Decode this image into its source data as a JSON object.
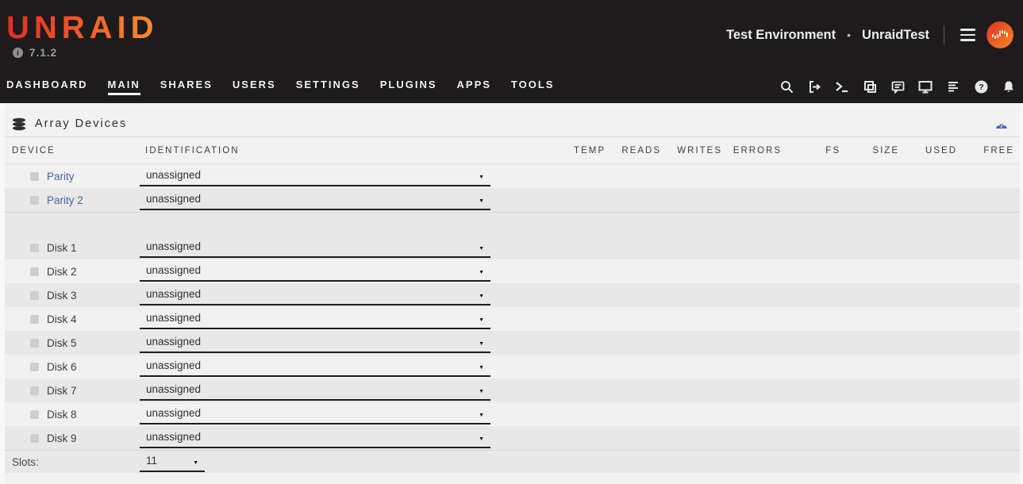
{
  "header": {
    "logo": "UNRAID",
    "version": "7.1.2",
    "environment_label": "Test Environment",
    "separator": "•",
    "server_name": "UnraidTest"
  },
  "nav": {
    "items": [
      {
        "label": "DASHBOARD",
        "active": false
      },
      {
        "label": "MAIN",
        "active": true
      },
      {
        "label": "SHARES",
        "active": false
      },
      {
        "label": "USERS",
        "active": false
      },
      {
        "label": "SETTINGS",
        "active": false
      },
      {
        "label": "PLUGINS",
        "active": false
      },
      {
        "label": "APPS",
        "active": false
      },
      {
        "label": "TOOLS",
        "active": false
      }
    ],
    "icon_buttons": [
      "search-icon",
      "logout-icon",
      "terminal-icon",
      "copy-icon",
      "feedback-icon",
      "monitor-icon",
      "log-icon",
      "help-icon",
      "notifications-icon"
    ]
  },
  "panel": {
    "title": "Array Devices",
    "title_icon": "disk-stack-icon",
    "corner_icon": "gauge-icon",
    "columns": [
      "DEVICE",
      "IDENTIFICATION",
      "TEMP",
      "READS",
      "WRITES",
      "ERRORS",
      "FS",
      "SIZE",
      "USED",
      "FREE"
    ],
    "parity_rows": [
      {
        "device": "Parity",
        "is_link": true,
        "identification": "unassigned",
        "shade": "light"
      },
      {
        "device": "Parity 2",
        "is_link": true,
        "identification": "unassigned",
        "shade": "dark"
      }
    ],
    "disk_rows": [
      {
        "device": "Disk 1",
        "is_link": false,
        "identification": "unassigned",
        "shade": "dark"
      },
      {
        "device": "Disk 2",
        "is_link": false,
        "identification": "unassigned",
        "shade": "light"
      },
      {
        "device": "Disk 3",
        "is_link": false,
        "identification": "unassigned",
        "shade": "dark"
      },
      {
        "device": "Disk 4",
        "is_link": false,
        "identification": "unassigned",
        "shade": "light"
      },
      {
        "device": "Disk 5",
        "is_link": false,
        "identification": "unassigned",
        "shade": "dark"
      },
      {
        "device": "Disk 6",
        "is_link": false,
        "identification": "unassigned",
        "shade": "light"
      },
      {
        "device": "Disk 7",
        "is_link": false,
        "identification": "unassigned",
        "shade": "dark"
      },
      {
        "device": "Disk 8",
        "is_link": false,
        "identification": "unassigned",
        "shade": "light"
      },
      {
        "device": "Disk 9",
        "is_link": false,
        "identification": "unassigned",
        "shade": "dark"
      }
    ],
    "slots": {
      "label": "Slots:",
      "value": "11"
    }
  },
  "icons": {
    "select_arrow": "▼",
    "info_glyph": "i"
  },
  "colors": {
    "header_bg": "#1d1b1b",
    "logo_gradient_start": "#e22a2a",
    "logo_gradient_end": "#ff8d2e",
    "link_blue": "#47699e",
    "gauge_blue": "#4a69b1",
    "row_light": "#f1f1f1",
    "row_dark": "#e8e8e8",
    "select_underline": "#1e1e1e"
  }
}
